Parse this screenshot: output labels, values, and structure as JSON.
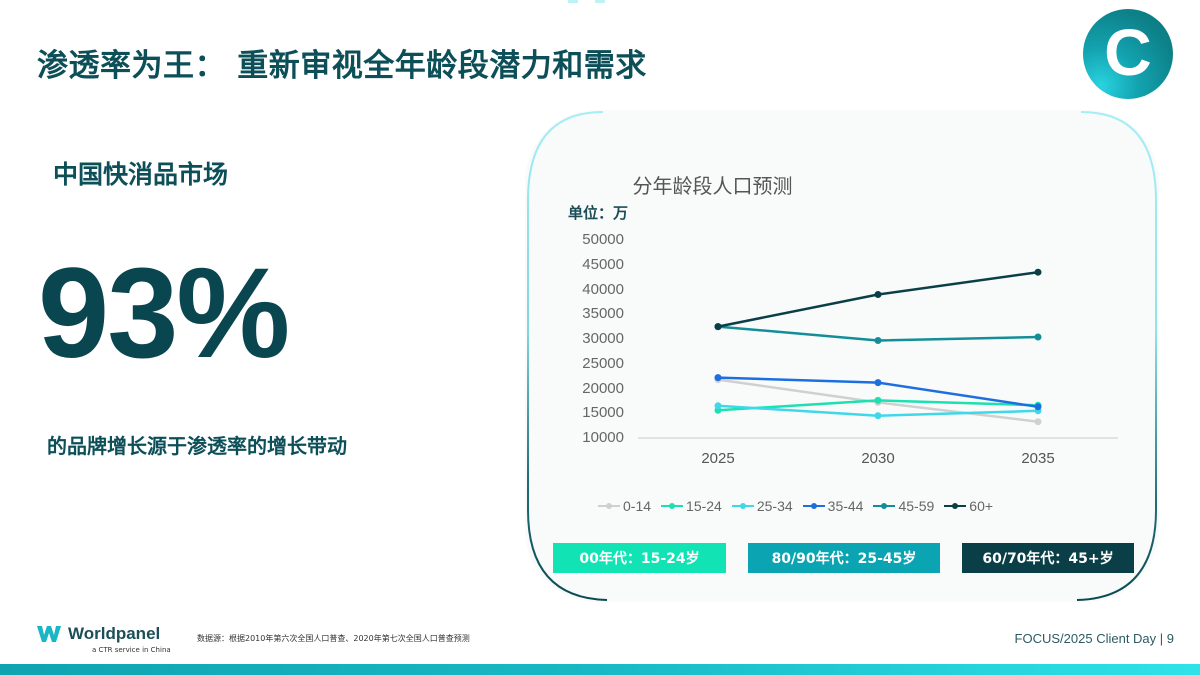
{
  "header": {
    "title": "渗透率为王： 重新审视全年龄段潜力和需求",
    "logo_letter": "C"
  },
  "left_panel": {
    "market_title": "中国快消品市场",
    "big_number": "93%",
    "caption": "的品牌增长源于渗透率的增长带动"
  },
  "chart_card": {
    "title": "分年龄段人口预测",
    "unit": "单位：万",
    "y_ticks": [
      "50000",
      "45000",
      "40000",
      "35000",
      "30000",
      "25000",
      "20000",
      "15000",
      "10000"
    ],
    "x_ticks": [
      "2025",
      "2030",
      "2035"
    ],
    "legend": [
      {
        "label": "0-14",
        "color": "#d0d0d0"
      },
      {
        "label": "15-24",
        "color": "#1de0b0"
      },
      {
        "label": "25-34",
        "color": "#3ed8ea"
      },
      {
        "label": "35-44",
        "color": "#1b6fe0"
      },
      {
        "label": "45-59",
        "color": "#138e99"
      },
      {
        "label": "60+",
        "color": "#0b3f47"
      }
    ],
    "tags": [
      {
        "label": "00年代：15-24岁",
        "color": "#12e3b4"
      },
      {
        "label": "80/90年代：25-45岁",
        "color": "#0ba4b2"
      },
      {
        "label": "60/70年代：45+岁",
        "color": "#0b3f47"
      }
    ]
  },
  "chart_data": {
    "type": "line",
    "title": "分年龄段人口预测",
    "xlabel": "",
    "ylabel": "单位：万",
    "categories": [
      "2025",
      "2030",
      "2035"
    ],
    "ylim": [
      10000,
      50000
    ],
    "grid": false,
    "legend_position": "bottom",
    "series": [
      {
        "name": "0-14",
        "color": "#d0d0d0",
        "values": [
          21800,
          17200,
          13300
        ]
      },
      {
        "name": "15-24",
        "color": "#1de0b0",
        "values": [
          15600,
          17600,
          16600
        ]
      },
      {
        "name": "25-34",
        "color": "#3ed8ea",
        "values": [
          16500,
          14500,
          15500
        ]
      },
      {
        "name": "35-44",
        "color": "#1b6fe0",
        "values": [
          22200,
          21200,
          16300
        ]
      },
      {
        "name": "45-59",
        "color": "#138e99",
        "values": [
          32500,
          29700,
          30400
        ]
      },
      {
        "name": "60+",
        "color": "#0b3f47",
        "values": [
          32500,
          39000,
          43500
        ]
      }
    ]
  },
  "footer": {
    "brand": "Worldpanel",
    "brand_sub": "a CTR service in China",
    "source": "数据源：根据2010年第六次全国人口普查、2020年第七次全国人口普查预测",
    "page_label": "FOCUS/2025 Client Day | 9"
  },
  "colors": {
    "primary_dark": "#0b4a52",
    "accent_teal": "#0ba4b2",
    "accent_green": "#12e3b4",
    "accent_cyan": "#2ee3e8"
  }
}
